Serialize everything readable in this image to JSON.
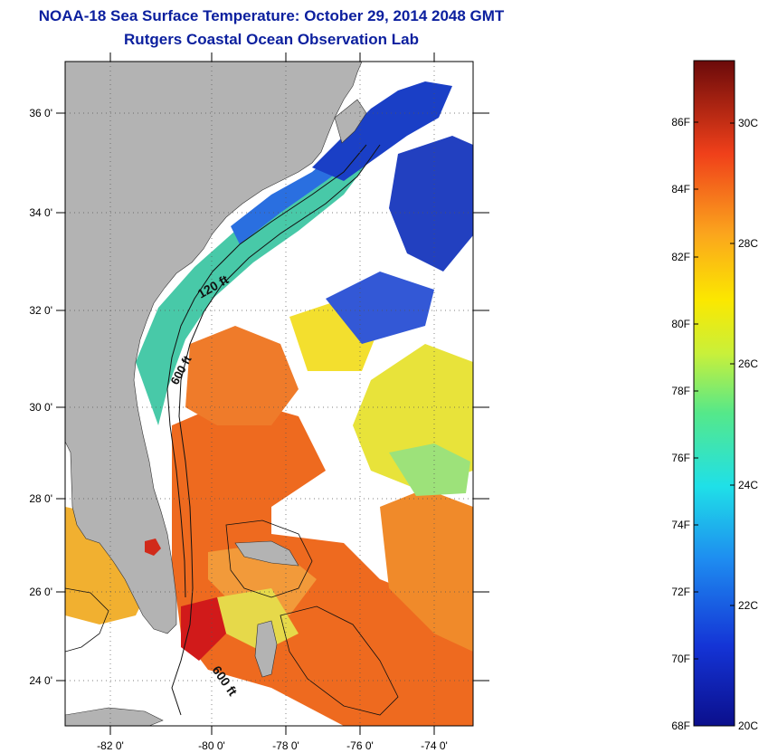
{
  "header": {
    "title": "NOAA-18 Sea Surface Temperature:  October 29, 2014 2048 GMT",
    "subtitle": "Rutgers Coastal Ocean Observation Lab"
  },
  "map": {
    "lat_ticks": [
      "36 0'",
      "34 0'",
      "32 0'",
      "30 0'",
      "28 0'",
      "26 0'",
      "24 0'"
    ],
    "lon_ticks": [
      "-82 0'",
      "-80 0'",
      "-78 0'",
      "-76 0'",
      "-74 0'"
    ],
    "contour_labels": [
      "120 ft",
      "600 ft",
      "600 ft"
    ],
    "colors": {
      "land": "#b3b3b3",
      "cloud": "#ffffff",
      "warm": "#e8541e",
      "cool": "#1b3fc9"
    }
  },
  "colorbar": {
    "fahrenheit": [
      "86F",
      "84F",
      "82F",
      "80F",
      "78F",
      "76F",
      "74F",
      "72F",
      "70F",
      "68F"
    ],
    "celsius": [
      "30C",
      "28C",
      "26C",
      "24C",
      "22C",
      "20C"
    ],
    "range_c": [
      20,
      31.4
    ]
  }
}
